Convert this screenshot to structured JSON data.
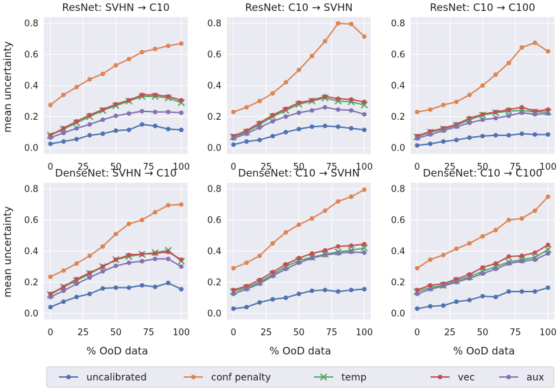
{
  "chart_data": {
    "type": "line",
    "x": [
      0,
      10,
      20,
      30,
      40,
      50,
      60,
      70,
      80,
      90,
      100
    ],
    "xticks": [
      0,
      25,
      50,
      75,
      100
    ],
    "yticks": [
      0.0,
      0.2,
      0.4,
      0.6,
      0.8
    ],
    "xlabel": "% OoD data",
    "ylabel": "mean uncertainty",
    "grid": true,
    "legend_position": "bottom",
    "series_style": {
      "uncalibrated": {
        "color": "#4c72b0",
        "marker": "o"
      },
      "conf penalty": {
        "color": "#dd8452",
        "marker": "o"
      },
      "temp": {
        "color": "#55a868",
        "marker": "x"
      },
      "vec": {
        "color": "#c44e52",
        "marker": "o"
      },
      "aux": {
        "color": "#8172b3",
        "marker": "o"
      }
    },
    "legend": [
      "uncalibrated",
      "conf penalty",
      "temp",
      "vec",
      "aux"
    ],
    "panels": [
      {
        "title": "ResNet: SVHN → C10",
        "ylim": [
          -0.04,
          0.84
        ],
        "series": [
          {
            "name": "uncalibrated",
            "values": [
              0.025,
              0.04,
              0.055,
              0.08,
              0.09,
              0.11,
              0.115,
              0.15,
              0.14,
              0.12,
              0.115
            ]
          },
          {
            "name": "conf penalty",
            "values": [
              0.275,
              0.34,
              0.39,
              0.44,
              0.475,
              0.53,
              0.57,
              0.615,
              0.635,
              0.655,
              0.67
            ]
          },
          {
            "name": "temp",
            "values": [
              0.08,
              0.12,
              0.16,
              0.2,
              0.24,
              0.27,
              0.3,
              0.33,
              0.33,
              0.32,
              0.29
            ]
          },
          {
            "name": "vec",
            "values": [
              0.08,
              0.125,
              0.17,
              0.21,
              0.245,
              0.28,
              0.305,
              0.34,
              0.34,
              0.33,
              0.305
            ]
          },
          {
            "name": "aux",
            "values": [
              0.065,
              0.095,
              0.125,
              0.15,
              0.18,
              0.205,
              0.22,
              0.235,
              0.23,
              0.23,
              0.225
            ]
          }
        ]
      },
      {
        "title": "ResNet: C10 → SVHN",
        "ylim": [
          -0.04,
          0.84
        ],
        "series": [
          {
            "name": "uncalibrated",
            "values": [
              0.02,
              0.04,
              0.05,
              0.075,
              0.1,
              0.12,
              0.135,
              0.14,
              0.135,
              0.125,
              0.115
            ]
          },
          {
            "name": "conf penalty",
            "values": [
              0.23,
              0.26,
              0.3,
              0.35,
              0.42,
              0.5,
              0.59,
              0.685,
              0.8,
              0.795,
              0.715
            ]
          },
          {
            "name": "temp",
            "values": [
              0.07,
              0.1,
              0.15,
              0.2,
              0.24,
              0.28,
              0.3,
              0.32,
              0.3,
              0.295,
              0.275
            ]
          },
          {
            "name": "vec",
            "values": [
              0.075,
              0.11,
              0.16,
              0.21,
              0.25,
              0.29,
              0.305,
              0.33,
              0.315,
              0.31,
              0.295
            ]
          },
          {
            "name": "aux",
            "values": [
              0.06,
              0.09,
              0.13,
              0.17,
              0.2,
              0.225,
              0.24,
              0.26,
              0.245,
              0.24,
              0.215
            ]
          }
        ]
      },
      {
        "title": "ResNet: C10 → C100",
        "ylim": [
          -0.04,
          0.84
        ],
        "series": [
          {
            "name": "uncalibrated",
            "values": [
              0.015,
              0.025,
              0.04,
              0.05,
              0.065,
              0.075,
              0.08,
              0.08,
              0.09,
              0.085,
              0.085
            ]
          },
          {
            "name": "conf penalty",
            "values": [
              0.23,
              0.245,
              0.275,
              0.295,
              0.34,
              0.4,
              0.47,
              0.545,
              0.645,
              0.675,
              0.62
            ]
          },
          {
            "name": "temp",
            "values": [
              0.07,
              0.1,
              0.12,
              0.145,
              0.18,
              0.21,
              0.225,
              0.235,
              0.24,
              0.23,
              0.23
            ]
          },
          {
            "name": "vec",
            "values": [
              0.075,
              0.105,
              0.125,
              0.15,
              0.19,
              0.215,
              0.23,
              0.245,
              0.26,
              0.235,
              0.245
            ]
          },
          {
            "name": "aux",
            "values": [
              0.06,
              0.085,
              0.11,
              0.135,
              0.16,
              0.18,
              0.19,
              0.205,
              0.225,
              0.215,
              0.22
            ]
          }
        ]
      },
      {
        "title": "DenseNet: SVHN → C10",
        "ylim": [
          -0.04,
          0.84
        ],
        "series": [
          {
            "name": "uncalibrated",
            "values": [
              0.04,
              0.075,
              0.105,
              0.125,
              0.16,
              0.165,
              0.165,
              0.18,
              0.17,
              0.195,
              0.155
            ]
          },
          {
            "name": "conf penalty",
            "values": [
              0.235,
              0.275,
              0.32,
              0.37,
              0.43,
              0.51,
              0.575,
              0.6,
              0.65,
              0.695,
              0.7
            ]
          },
          {
            "name": "temp",
            "values": [
              0.12,
              0.17,
              0.21,
              0.255,
              0.3,
              0.345,
              0.365,
              0.38,
              0.39,
              0.405,
              0.335
            ]
          },
          {
            "name": "vec",
            "values": [
              0.125,
              0.17,
              0.22,
              0.26,
              0.3,
              0.345,
              0.375,
              0.38,
              0.385,
              0.395,
              0.345
            ]
          },
          {
            "name": "aux",
            "values": [
              0.105,
              0.145,
              0.19,
              0.23,
              0.27,
              0.305,
              0.325,
              0.335,
              0.35,
              0.35,
              0.3
            ]
          }
        ]
      },
      {
        "title": "DenseNet: C10 → SVHN",
        "ylim": [
          -0.04,
          0.84
        ],
        "series": [
          {
            "name": "uncalibrated",
            "values": [
              0.03,
              0.04,
              0.07,
              0.09,
              0.1,
              0.125,
              0.145,
              0.15,
              0.14,
              0.15,
              0.155
            ]
          },
          {
            "name": "conf penalty",
            "values": [
              0.29,
              0.325,
              0.37,
              0.45,
              0.52,
              0.57,
              0.61,
              0.66,
              0.72,
              0.75,
              0.795
            ]
          },
          {
            "name": "temp",
            "values": [
              0.14,
              0.165,
              0.2,
              0.25,
              0.3,
              0.34,
              0.36,
              0.38,
              0.395,
              0.405,
              0.42
            ]
          },
          {
            "name": "vec",
            "values": [
              0.15,
              0.175,
              0.215,
              0.265,
              0.315,
              0.355,
              0.385,
              0.405,
              0.43,
              0.435,
              0.445
            ]
          },
          {
            "name": "aux",
            "values": [
              0.125,
              0.155,
              0.19,
              0.24,
              0.285,
              0.325,
              0.355,
              0.375,
              0.385,
              0.395,
              0.39
            ]
          }
        ]
      },
      {
        "title": "DenseNet: C10 → C100",
        "ylim": [
          -0.04,
          0.84
        ],
        "series": [
          {
            "name": "uncalibrated",
            "values": [
              0.03,
              0.045,
              0.05,
              0.075,
              0.085,
              0.11,
              0.105,
              0.14,
              0.14,
              0.14,
              0.165
            ]
          },
          {
            "name": "conf penalty",
            "values": [
              0.29,
              0.345,
              0.375,
              0.415,
              0.45,
              0.495,
              0.535,
              0.6,
              0.61,
              0.66,
              0.75
            ]
          },
          {
            "name": "temp",
            "values": [
              0.14,
              0.165,
              0.18,
              0.21,
              0.235,
              0.27,
              0.3,
              0.33,
              0.345,
              0.36,
              0.41
            ]
          },
          {
            "name": "vec",
            "values": [
              0.15,
              0.18,
              0.19,
              0.22,
              0.25,
              0.295,
              0.32,
              0.365,
              0.37,
              0.39,
              0.44
            ]
          },
          {
            "name": "aux",
            "values": [
              0.125,
              0.155,
              0.175,
              0.2,
              0.225,
              0.255,
              0.285,
              0.32,
              0.335,
              0.345,
              0.385
            ]
          }
        ]
      }
    ]
  }
}
